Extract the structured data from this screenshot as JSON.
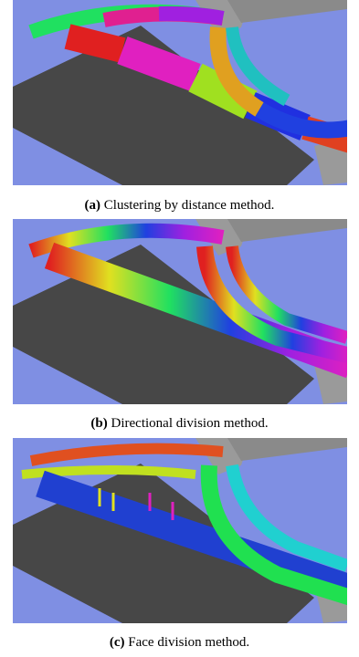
{
  "panels": [
    {
      "label": "(a)",
      "caption": "Clustering by distance method."
    },
    {
      "label": "(b)",
      "caption": "Directional division method."
    },
    {
      "label": "(c)",
      "caption": "Face division method."
    }
  ]
}
